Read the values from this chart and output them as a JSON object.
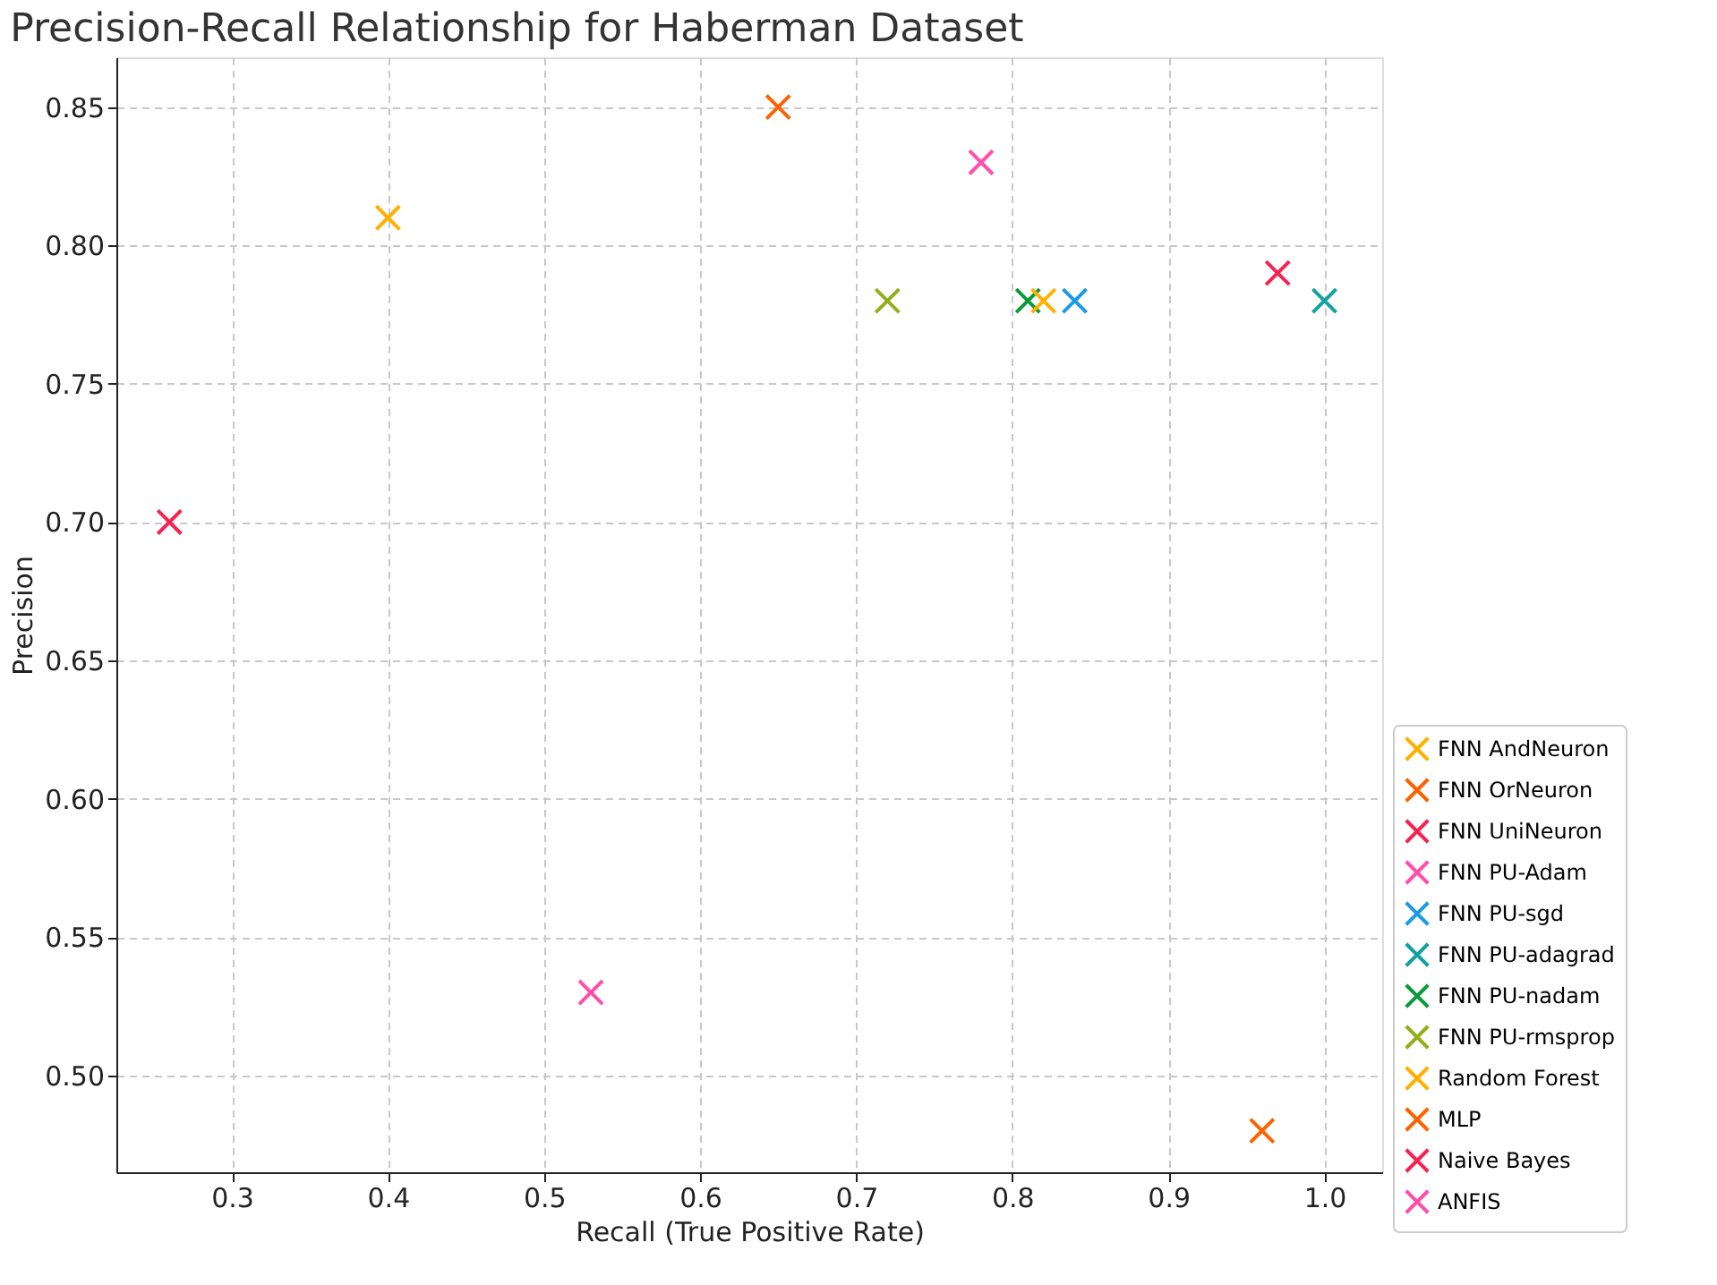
{
  "chart_data": {
    "type": "scatter",
    "title": "Precision-Recall Relationship for Haberman Dataset",
    "xlabel": "Recall (True Positive Rate)",
    "ylabel": "Precision",
    "series": [
      {
        "name": "FNN AndNeuron",
        "color": "#ffb000",
        "x": [
          0.4
        ],
        "values": [
          0.81
        ]
      },
      {
        "name": "FNN OrNeuron",
        "color": "#fe6100",
        "x": [
          0.65
        ],
        "values": [
          0.85
        ]
      },
      {
        "name": "FNN UniNeuron",
        "color": "#f5234f",
        "x": [
          0.26
        ],
        "values": [
          0.7
        ]
      },
      {
        "name": "FNN PU-Adam",
        "color": "#ff4fa8",
        "x": [
          0.78
        ],
        "values": [
          0.83
        ]
      },
      {
        "name": "FNN PU-sgd",
        "color": "#1a9be8",
        "x": [
          0.84
        ],
        "values": [
          0.78
        ]
      },
      {
        "name": "FNN PU-adagrad",
        "color": "#15a0a0",
        "x": [
          1.0
        ],
        "values": [
          0.78
        ]
      },
      {
        "name": "FNN PU-nadam",
        "color": "#0a9a3c",
        "x": [
          0.81
        ],
        "values": [
          0.78
        ]
      },
      {
        "name": "FNN PU-rmsprop",
        "color": "#90b01a",
        "x": [
          0.72
        ],
        "values": [
          0.78
        ]
      },
      {
        "name": "Random Forest",
        "color": "#ffb000",
        "x": [
          0.82
        ],
        "values": [
          0.78
        ]
      },
      {
        "name": "MLP",
        "color": "#fe6100",
        "x": [
          0.96
        ],
        "values": [
          0.48
        ]
      },
      {
        "name": "Naive Bayes",
        "color": "#f5234f",
        "x": [
          0.97
        ],
        "values": [
          0.79
        ]
      },
      {
        "name": "ANFIS",
        "color": "#ff4fa8",
        "x": [
          0.53
        ],
        "values": [
          0.53
        ]
      }
    ],
    "xlim": [
      0.226,
      1.037
    ],
    "xticks": [
      {
        "value": 0.3,
        "label": "0.3"
      },
      {
        "value": 0.4,
        "label": "0.4"
      },
      {
        "value": 0.5,
        "label": "0.5"
      },
      {
        "value": 0.6,
        "label": "0.6"
      },
      {
        "value": 0.7,
        "label": "0.7"
      },
      {
        "value": 0.8,
        "label": "0.8"
      },
      {
        "value": 0.9,
        "label": "0.9"
      },
      {
        "value": 1.0,
        "label": "1.0"
      }
    ],
    "ylim": [
      0.465,
      0.868
    ],
    "yticks": [
      {
        "value": 0.5,
        "label": "0.50"
      },
      {
        "value": 0.55,
        "label": "0.55"
      },
      {
        "value": 0.6,
        "label": "0.60"
      },
      {
        "value": 0.65,
        "label": "0.65"
      },
      {
        "value": 0.7,
        "label": "0.70"
      },
      {
        "value": 0.75,
        "label": "0.75"
      },
      {
        "value": 0.8,
        "label": "0.80"
      },
      {
        "value": 0.85,
        "label": "0.85"
      }
    ],
    "grid": true,
    "legend": "bottom right",
    "marker": "cross"
  }
}
